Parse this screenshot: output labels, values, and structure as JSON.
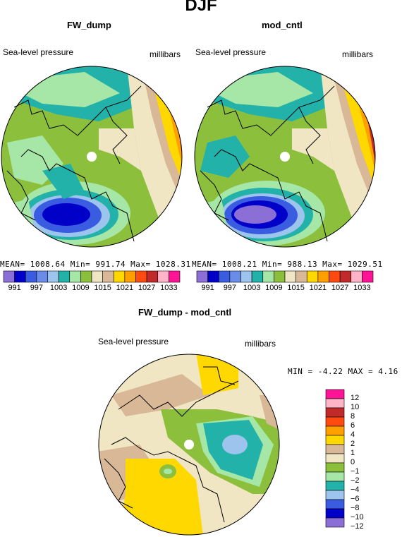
{
  "title": "DJF",
  "panels": [
    {
      "title": "FW_dump",
      "left_label": "Sea-level pressure",
      "right_label": "millibars",
      "stats": "MEAN= 1008.64   Min= 991.74   Max= 1028.31"
    },
    {
      "title": "mod_cntl",
      "left_label": "Sea-level pressure",
      "right_label": "millibars",
      "stats": "MEAN= 1008.21   Min= 988.13   Max= 1029.51"
    },
    {
      "title": "FW_dump - mod_cntl",
      "left_label": "Sea-level pressure",
      "right_label": "millibars",
      "stats": "MIN =  -4.22 MAX =   4.16"
    }
  ],
  "top_colorbar": {
    "colors": [
      "#8c6fd6",
      "#0000c8",
      "#3a5ce0",
      "#6a8ce8",
      "#9cc4ec",
      "#22b2aa",
      "#a6e6a6",
      "#8cc03c",
      "#f0e6c4",
      "#d8b896",
      "#ffd800",
      "#ffa000",
      "#ff4a10",
      "#c02a2a",
      "#ffb4c8",
      "#ff1496"
    ],
    "labels": [
      "991",
      "997",
      "1003",
      "1009",
      "1015",
      "1021",
      "1027",
      "1033"
    ]
  },
  "diff_colorbar": {
    "colors": [
      "#ff1496",
      "#ffb4c8",
      "#c02a2a",
      "#ff4a10",
      "#ffa000",
      "#ffd800",
      "#d8b896",
      "#f0e6c4",
      "#8cc03c",
      "#a6e6a6",
      "#22b2aa",
      "#9cc4ec",
      "#3a5ce0",
      "#0000c8",
      "#8c6fd6"
    ],
    "labels": [
      "12",
      "10",
      "8",
      "6",
      "4",
      "2",
      "1",
      "0",
      "−1",
      "−2",
      "−4",
      "−6",
      "−8",
      "−10",
      "−12"
    ]
  },
  "colors": {
    "land_fill": "#f0e6c4",
    "coast": "#000000"
  }
}
